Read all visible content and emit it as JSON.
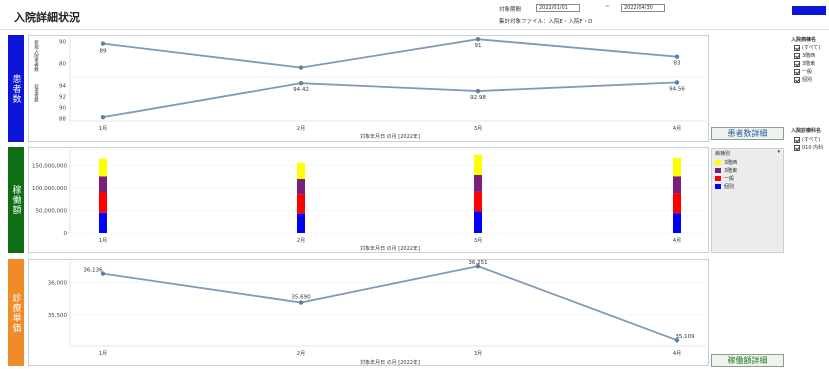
{
  "header": {
    "title": "入院詳細状況",
    "period_label": "対象期間",
    "period_start": "2022/01/01",
    "period_sep": "~",
    "period_end": "2022/04/30",
    "source_label": "集計対象ファイル：入院E・入院F・D"
  },
  "sections": {
    "patients": "患者数",
    "operations": "稼働額",
    "unit_price": "診療単価"
  },
  "months": [
    "1月",
    "2月",
    "3月",
    "4月"
  ],
  "x_axis_title": "対象年月日 の月 [2022年]",
  "patients_chart": {
    "upper_label": "新規入院患者数",
    "lower_label": "延患者数",
    "upper_ticks": [
      "90",
      "80"
    ],
    "lower_ticks": [
      "94",
      "92",
      "90",
      "88"
    ],
    "upper_series": [
      89,
      78,
      91,
      83
    ],
    "upper_labels": [
      "89",
      "",
      "91",
      "83"
    ],
    "lower_series": [
      88.2,
      94.42,
      92.98,
      94.56
    ],
    "lower_labels": [
      "",
      "94.42",
      "92.98",
      "94.56"
    ]
  },
  "operations_chart": {
    "y_ticks": [
      "150,000,000",
      "100,000,000",
      "50,000,000",
      "0"
    ],
    "legend_header": "病棟別",
    "legend": [
      {
        "name": "3階西",
        "color": "#ffff00"
      },
      {
        "name": "3階東",
        "color": "#7a1f7a"
      },
      {
        "name": "一般",
        "color": "#ff0000"
      },
      {
        "name": "個別",
        "color": "#0000ff"
      }
    ],
    "stacks": [
      {
        "month": "1月",
        "values": [
          39000000,
          36000000,
          45000000,
          45000000
        ]
      },
      {
        "month": "2月",
        "values": [
          36000000,
          34000000,
          43000000,
          43000000
        ]
      },
      {
        "month": "3月",
        "values": [
          45000000,
          37000000,
          44000000,
          48000000
        ]
      },
      {
        "month": "4月",
        "values": [
          41000000,
          38000000,
          44000000,
          44000000
        ]
      }
    ]
  },
  "price_chart": {
    "y_ticks": [
      "36,000",
      "35,500"
    ],
    "values": [
      36136,
      35690,
      36251,
      35109
    ],
    "labels": [
      "36,136",
      "35,690",
      "36,251",
      "35,109"
    ]
  },
  "filters": {
    "ward_title": "入院病棟名",
    "ward_items": [
      "(すべて)",
      "3階西",
      "3階東",
      "一般",
      "個別"
    ],
    "dept_title": "入院診療科名",
    "dept_items": [
      "(すべて)",
      "010 内科"
    ]
  },
  "buttons": {
    "patients_detail": "患者数詳細",
    "operations_detail": "稼働額詳細"
  }
}
